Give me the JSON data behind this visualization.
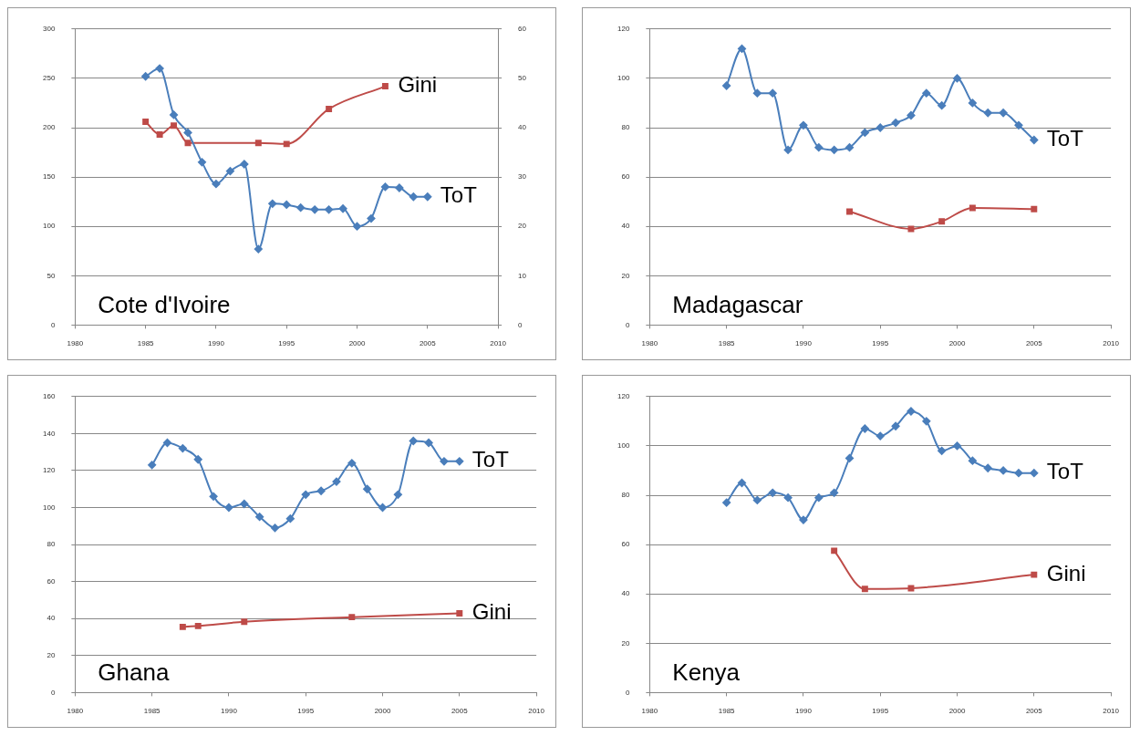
{
  "chart_data": [
    {
      "type": "line",
      "title": "Cote d'Ivoire",
      "xlim": [
        1980,
        2010
      ],
      "xticks": [
        1980,
        1985,
        1990,
        1995,
        2000,
        2005,
        2010
      ],
      "ylim": [
        0,
        300
      ],
      "yticks": [
        0,
        50,
        100,
        150,
        200,
        250,
        300
      ],
      "y2lim": [
        0,
        60
      ],
      "y2ticks": [
        0,
        10,
        20,
        30,
        40,
        50,
        60
      ],
      "grid": "y",
      "legend": false,
      "series": [
        {
          "name": "ToT",
          "color": "#4a7ebb",
          "marker": "diamond",
          "x": [
            1985,
            1986,
            1987,
            1988,
            1989,
            1990,
            1991,
            1992,
            1993,
            1994,
            1995,
            1996,
            1997,
            1998,
            1999,
            2000,
            2001,
            2002,
            2003,
            2004,
            2005
          ],
          "values": [
            252,
            260,
            213,
            195,
            165,
            143,
            156,
            163,
            77,
            123,
            122,
            119,
            117,
            117,
            118,
            100,
            108,
            140,
            139,
            130,
            130
          ]
        },
        {
          "name": "Gini",
          "color": "#be4b48",
          "marker": "square",
          "axis": "y2",
          "x": [
            1985,
            1986,
            1987,
            1988,
            1993,
            1995,
            1998,
            2002
          ],
          "values": [
            41.2,
            38.6,
            40.4,
            36.9,
            36.9,
            36.7,
            43.8,
            48.4
          ]
        }
      ]
    },
    {
      "type": "line",
      "title": "Madagascar",
      "xlim": [
        1980,
        2010
      ],
      "xticks": [
        1980,
        1985,
        1990,
        1995,
        2000,
        2005,
        2010
      ],
      "ylim": [
        0,
        120
      ],
      "yticks": [
        0,
        20,
        40,
        60,
        80,
        100,
        120
      ],
      "grid": "y",
      "legend": false,
      "series": [
        {
          "name": "ToT",
          "color": "#4a7ebb",
          "marker": "diamond",
          "x": [
            1985,
            1986,
            1987,
            1988,
            1989,
            1990,
            1991,
            1992,
            1993,
            1994,
            1995,
            1996,
            1997,
            1998,
            1999,
            2000,
            2001,
            2002,
            2003,
            2004,
            2005
          ],
          "values": [
            97,
            112,
            94,
            94,
            71,
            81,
            72,
            71,
            72,
            78,
            80,
            82,
            85,
            94,
            89,
            100,
            90,
            86,
            86,
            81,
            75
          ]
        },
        {
          "color": "#be4b48",
          "marker": "square",
          "x": [
            1993,
            1997,
            1999,
            2001,
            2005
          ],
          "values": [
            46,
            39,
            42,
            47.5,
            47
          ]
        }
      ]
    },
    {
      "type": "line",
      "title": "Ghana",
      "xlim": [
        1980,
        2010
      ],
      "xticks": [
        1980,
        1985,
        1990,
        1995,
        2000,
        2005,
        2010
      ],
      "ylim": [
        0,
        160
      ],
      "yticks": [
        0,
        20,
        40,
        60,
        80,
        100,
        120,
        140,
        160
      ],
      "grid": "y",
      "legend": false,
      "series": [
        {
          "name": "ToT",
          "color": "#4a7ebb",
          "marker": "diamond",
          "x": [
            1985,
            1986,
            1987,
            1988,
            1989,
            1990,
            1991,
            1992,
            1993,
            1994,
            1995,
            1996,
            1997,
            1998,
            1999,
            2000,
            2001,
            2002,
            2003,
            2004,
            2005
          ],
          "values": [
            123,
            135,
            132,
            126,
            106,
            100,
            102,
            95,
            89,
            94,
            107,
            109,
            114,
            124,
            110,
            100,
            107,
            136,
            135,
            125,
            125
          ]
        },
        {
          "name": "Gini",
          "color": "#be4b48",
          "marker": "square",
          "x": [
            1987,
            1988,
            1991,
            1998,
            2005
          ],
          "values": [
            35.5,
            36,
            38.3,
            40.8,
            42.8
          ]
        }
      ]
    },
    {
      "type": "line",
      "title": "Kenya",
      "xlim": [
        1980,
        2010
      ],
      "xticks": [
        1980,
        1985,
        1990,
        1995,
        2000,
        2005,
        2010
      ],
      "ylim": [
        0,
        120
      ],
      "yticks": [
        0,
        20,
        40,
        60,
        80,
        100,
        120
      ],
      "grid": "y",
      "legend": false,
      "series": [
        {
          "name": "ToT",
          "color": "#4a7ebb",
          "marker": "diamond",
          "x": [
            1985,
            1986,
            1987,
            1988,
            1989,
            1990,
            1991,
            1992,
            1993,
            1994,
            1995,
            1996,
            1997,
            1998,
            1999,
            2000,
            2001,
            2002,
            2003,
            2004,
            2005
          ],
          "values": [
            77,
            85,
            78,
            81,
            79,
            70,
            79,
            81,
            95,
            107,
            104,
            108,
            114,
            110,
            98,
            100,
            94,
            91,
            90,
            89,
            89
          ]
        },
        {
          "name": "Gini",
          "color": "#be4b48",
          "marker": "square",
          "x": [
            1992,
            1994,
            1997,
            2005
          ],
          "values": [
            57.5,
            42,
            42.3,
            47.8
          ]
        }
      ]
    }
  ]
}
